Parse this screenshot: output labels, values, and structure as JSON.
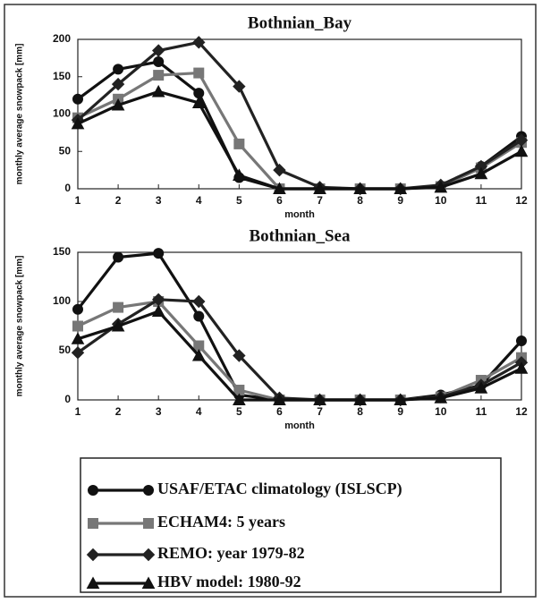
{
  "chart_data": [
    {
      "type": "line",
      "title": "Bothnian_Bay",
      "xlabel": "month",
      "ylabel": "monthly average snowpack [mm]",
      "x": [
        1,
        2,
        3,
        4,
        5,
        6,
        7,
        8,
        9,
        10,
        11,
        12
      ],
      "xlim": [
        1,
        12
      ],
      "xticks": [
        1,
        2,
        3,
        4,
        5,
        6,
        7,
        8,
        9,
        10,
        11,
        12
      ],
      "ylim": [
        0,
        200
      ],
      "yticks": [
        0,
        50,
        100,
        150,
        200
      ],
      "series": [
        {
          "name": "USAF/ETAC climatology (ISLSCP)",
          "color": "#111111",
          "marker": "circle",
          "values": [
            120,
            160,
            170,
            128,
            15,
            0,
            0,
            0,
            0,
            3,
            30,
            70
          ]
        },
        {
          "name": "ECHAM4: 5 years",
          "color": "#777777",
          "marker": "square",
          "values": [
            95,
            120,
            152,
            155,
            60,
            0,
            0,
            0,
            0,
            3,
            28,
            62
          ]
        },
        {
          "name": "REMO: year 1979-82",
          "color": "#222222",
          "marker": "diamond",
          "values": [
            92,
            140,
            185,
            196,
            137,
            25,
            2,
            0,
            0,
            5,
            30,
            65
          ]
        },
        {
          "name": "HBV model: 1980-92",
          "color": "#111111",
          "marker": "triangle",
          "values": [
            87,
            112,
            130,
            115,
            18,
            0,
            0,
            0,
            0,
            2,
            20,
            50
          ]
        }
      ]
    },
    {
      "type": "line",
      "title": "Bothnian_Sea",
      "xlabel": "month",
      "ylabel": "monthly average snowpack [mm]",
      "x": [
        1,
        2,
        3,
        4,
        5,
        6,
        7,
        8,
        9,
        10,
        11,
        12
      ],
      "xlim": [
        1,
        12
      ],
      "xticks": [
        1,
        2,
        3,
        4,
        5,
        6,
        7,
        8,
        9,
        10,
        11,
        12
      ],
      "ylim": [
        0,
        150
      ],
      "yticks": [
        0,
        50,
        100,
        150
      ],
      "series": [
        {
          "name": "USAF/ETAC climatology (ISLSCP)",
          "color": "#111111",
          "marker": "circle",
          "values": [
            92,
            145,
            149,
            85,
            5,
            0,
            0,
            0,
            0,
            5,
            15,
            60
          ]
        },
        {
          "name": "ECHAM4: 5 years",
          "color": "#777777",
          "marker": "square",
          "values": [
            75,
            94,
            100,
            55,
            10,
            0,
            0,
            0,
            0,
            3,
            20,
            43
          ]
        },
        {
          "name": "REMO: year 1979-82",
          "color": "#222222",
          "marker": "diamond",
          "values": [
            48,
            77,
            102,
            100,
            45,
            2,
            0,
            0,
            0,
            3,
            15,
            38
          ]
        },
        {
          "name": "HBV model: 1980-92",
          "color": "#111111",
          "marker": "triangle",
          "values": [
            62,
            75,
            90,
            45,
            0,
            0,
            0,
            0,
            0,
            2,
            12,
            32
          ]
        }
      ]
    }
  ]
}
